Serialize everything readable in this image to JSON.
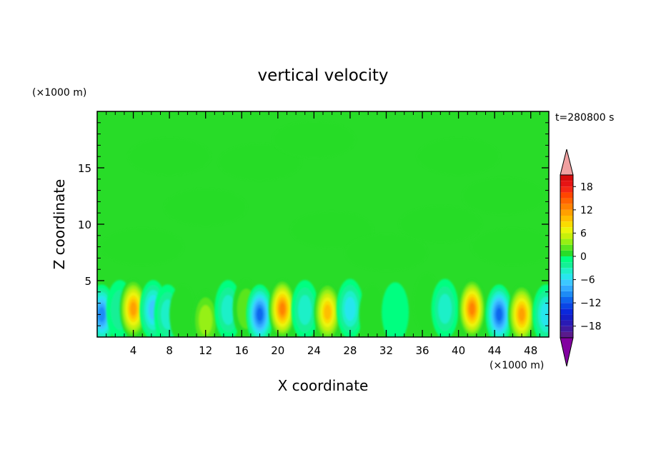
{
  "chart_data": {
    "type": "heatmap",
    "title": "vertical velocity",
    "xlabel": "X coordinate",
    "ylabel": "Z coordinate",
    "x_unit_label": "(×1000 m)",
    "y_unit_label": "(×1000 m)",
    "time_label": "t=280800 s",
    "xlim": [
      0,
      50
    ],
    "ylim": [
      0,
      20
    ],
    "x_ticks": [
      4,
      8,
      12,
      16,
      20,
      24,
      28,
      32,
      36,
      40,
      44,
      48
    ],
    "y_ticks": [
      5,
      10,
      15
    ],
    "colorbar": {
      "levels": [
        -21,
        -19.5,
        -18,
        -16.5,
        -15,
        -13.5,
        -12,
        -10.5,
        -9,
        -7.5,
        -6,
        -4.5,
        -3,
        -1.5,
        0,
        1.5,
        3,
        4.5,
        6,
        7.5,
        9,
        10.5,
        12,
        13.5,
        15,
        16.5,
        18,
        19.5,
        21
      ],
      "tick_labels": [
        "18",
        "12",
        "6",
        "0",
        "−6",
        "−12",
        "−18"
      ],
      "tick_values": [
        18,
        12,
        6,
        0,
        -6,
        -12,
        -18
      ],
      "colors": [
        "#5a1a8c",
        "#401aa0",
        "#2a1ab4",
        "#141ec8",
        "#0a28dc",
        "#0a46e6",
        "#0f66ee",
        "#1e8cf5",
        "#32aaff",
        "#3cc8ff",
        "#28e6ee",
        "#1ef0c8",
        "#14f096",
        "#00ff80",
        "#28dc28",
        "#5ae61e",
        "#96f014",
        "#c8f00a",
        "#ebf50a",
        "#fadc00",
        "#ffbe00",
        "#ffa000",
        "#ff8200",
        "#ff6400",
        "#ff4600",
        "#f52814",
        "#e61414",
        "#d70a0a"
      ],
      "over_color": "#f0a0a0",
      "under_color": "#8200a0"
    },
    "background_value": 0,
    "cells": [
      {
        "x": 0.5,
        "z": 2.0,
        "w": -10
      },
      {
        "x": 2.5,
        "z": 2.4,
        "w": -3
      },
      {
        "x": 4.0,
        "z": 2.5,
        "w": 12
      },
      {
        "x": 6.2,
        "z": 2.4,
        "w": -8
      },
      {
        "x": 7.8,
        "z": 2.0,
        "w": -4
      },
      {
        "x": 9.5,
        "z": 2.0,
        "w": 1
      },
      {
        "x": 12.0,
        "z": 1.5,
        "w": 5
      },
      {
        "x": 14.5,
        "z": 2.4,
        "w": -5
      },
      {
        "x": 16.5,
        "z": 2.5,
        "w": 3
      },
      {
        "x": 18.0,
        "z": 2.0,
        "w": -12
      },
      {
        "x": 20.5,
        "z": 2.5,
        "w": 13
      },
      {
        "x": 23.0,
        "z": 2.4,
        "w": -5
      },
      {
        "x": 25.5,
        "z": 2.2,
        "w": 11
      },
      {
        "x": 28.0,
        "z": 2.5,
        "w": -6
      },
      {
        "x": 30.5,
        "z": 2.0,
        "w": 1
      },
      {
        "x": 33.0,
        "z": 2.2,
        "w": -2
      },
      {
        "x": 36.5,
        "z": 3.0,
        "w": 2
      },
      {
        "x": 38.5,
        "z": 2.5,
        "w": -5
      },
      {
        "x": 41.5,
        "z": 2.5,
        "w": 14
      },
      {
        "x": 44.5,
        "z": 2.0,
        "w": -12
      },
      {
        "x": 47.0,
        "z": 2.0,
        "w": 12
      },
      {
        "x": 49.7,
        "z": 2.0,
        "w": -6
      },
      {
        "x": 8.0,
        "z": 16.0,
        "w": 1
      },
      {
        "x": 18.0,
        "z": 15.5,
        "w": 1
      },
      {
        "x": 24.0,
        "z": 17.5,
        "w": 1
      },
      {
        "x": 40.0,
        "z": 16.0,
        "w": 1
      },
      {
        "x": 12.0,
        "z": 11.5,
        "w": 1
      },
      {
        "x": 26.0,
        "z": 9.5,
        "w": 1
      },
      {
        "x": 38.0,
        "z": 10.0,
        "w": 1
      },
      {
        "x": 45.0,
        "z": 12.5,
        "w": 1
      },
      {
        "x": 5.0,
        "z": 8.0,
        "w": 1
      },
      {
        "x": 32.0,
        "z": 7.5,
        "w": 1
      },
      {
        "x": 46.0,
        "z": 8.0,
        "w": 1
      }
    ]
  }
}
